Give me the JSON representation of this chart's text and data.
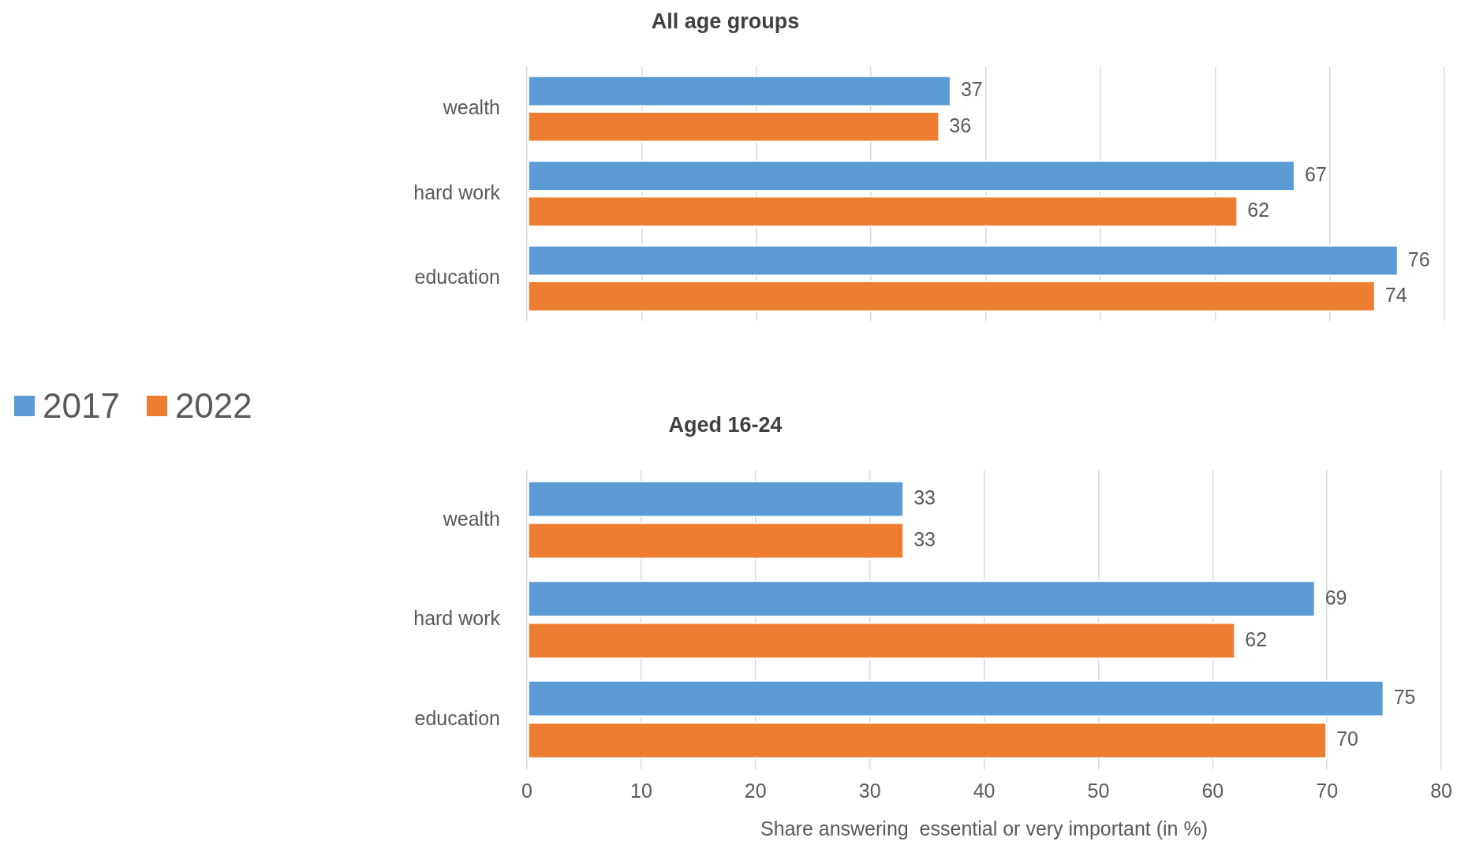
{
  "chart_data": [
    {
      "type": "bar",
      "orientation": "horizontal",
      "title": "All age groups",
      "categories": [
        "wealth",
        "hard work",
        "education"
      ],
      "series": [
        {
          "name": "2017",
          "color": "#5b9bd5",
          "values": [
            37,
            67,
            76
          ]
        },
        {
          "name": "2022",
          "color": "#ed7d31",
          "values": [
            36,
            62,
            74
          ]
        }
      ],
      "xlim": [
        0,
        80
      ],
      "xticks": [
        0,
        10,
        20,
        30,
        40,
        50,
        60,
        70,
        80
      ],
      "tick_labels": "y",
      "grid": "x",
      "data_labels": true,
      "legend": "left"
    },
    {
      "type": "bar",
      "orientation": "horizontal",
      "title": "Aged 16-24",
      "xlabel": "Share answering  essential or very important (in %)",
      "categories": [
        "wealth",
        "hard work",
        "education"
      ],
      "series": [
        {
          "name": "2017",
          "color": "#5b9bd5",
          "values": [
            33,
            69,
            75
          ]
        },
        {
          "name": "2022",
          "color": "#ed7d31",
          "values": [
            33,
            62,
            70
          ]
        }
      ],
      "xlim": [
        0,
        80
      ],
      "xticks": [
        0,
        10,
        20,
        30,
        40,
        50,
        60,
        70,
        80
      ],
      "grid": "x",
      "data_labels": true
    }
  ]
}
